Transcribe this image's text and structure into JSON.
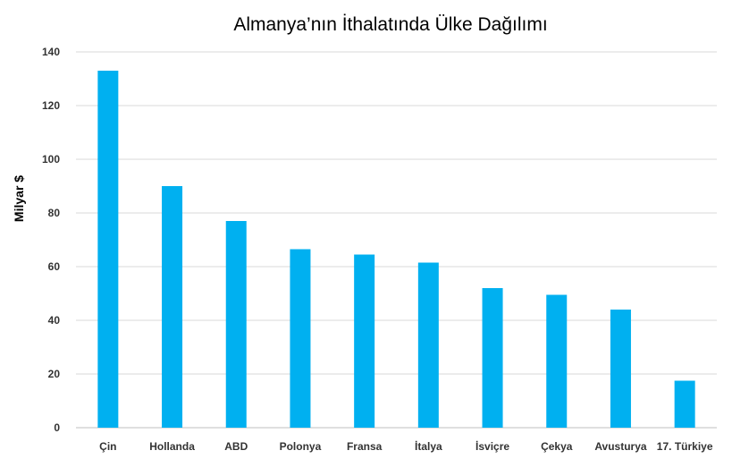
{
  "chart_data": {
    "type": "bar",
    "title": "Almanya’nın İthalatında Ülke Dağılımı",
    "xlabel": "",
    "ylabel": "Milyar $",
    "categories": [
      "Çin",
      "Hollanda",
      "ABD",
      "Polonya",
      "Fransa",
      "İtalya",
      "İsviçre",
      "Çekya",
      "Avusturya",
      "17. Türkiye"
    ],
    "values": [
      133,
      90,
      77,
      66.5,
      64.5,
      61.5,
      52,
      49.5,
      44,
      17.5
    ],
    "ylim": [
      0,
      140
    ],
    "yticks": [
      "0",
      "20",
      "40",
      "60",
      "80",
      "100",
      "120",
      "140"
    ],
    "grid": true,
    "legend": "none",
    "colors": {
      "bar": "#00b0f0"
    }
  }
}
